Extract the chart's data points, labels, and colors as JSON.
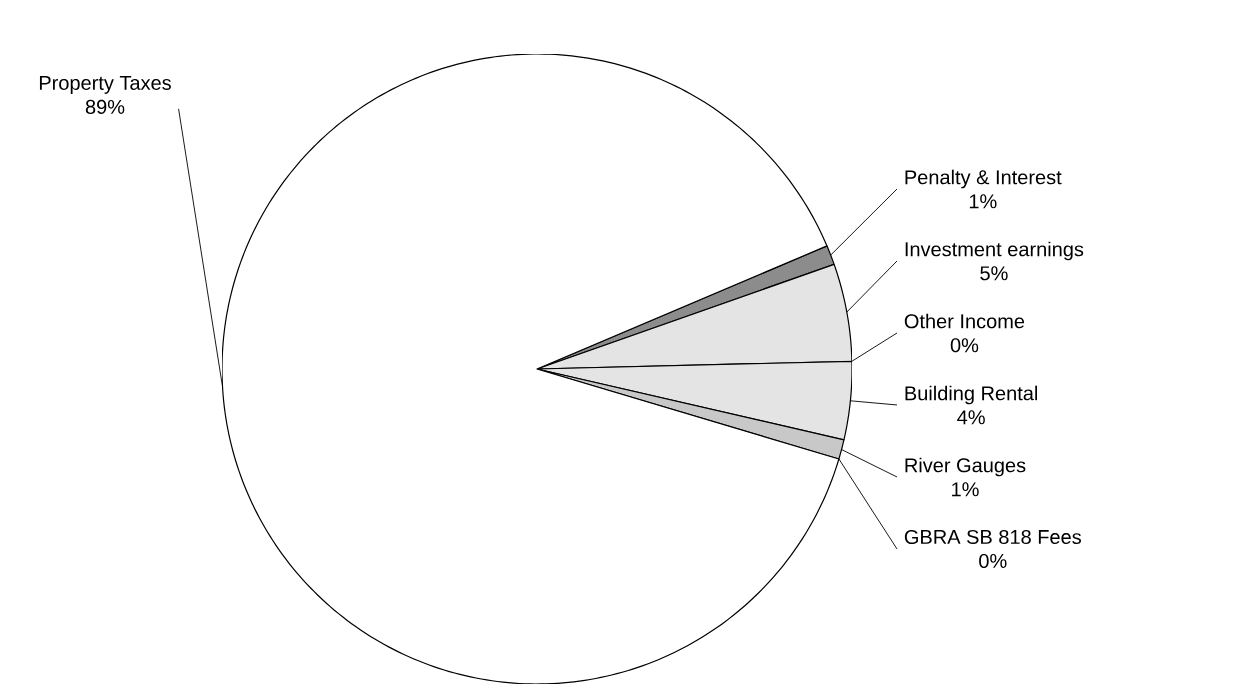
{
  "chart_data": {
    "type": "pie",
    "categories": [
      "Penalty & Interest",
      "Investment earnings",
      "Other Income",
      "Building Rental",
      "River Gauges",
      "GBRA SB 818 Fees",
      "Property Taxes"
    ],
    "values": [
      1,
      5,
      0,
      4,
      1,
      0,
      89
    ],
    "value_labels": [
      "1%",
      "5%",
      "0%",
      "4%",
      "1%",
      "0%",
      "89%"
    ],
    "colors": [
      "#8c8c8c",
      "#e4e4e4",
      "#ffffff",
      "#e4e4e4",
      "#c8c8c8",
      "#ffffff",
      "#ffffff"
    ]
  }
}
